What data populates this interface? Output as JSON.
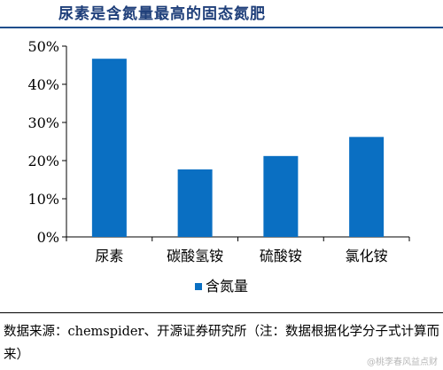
{
  "header": {
    "title": "尿素是含氮量最高的固态氮肥"
  },
  "chart_data": {
    "type": "bar",
    "title": "尿素是含氮量最高的固态氮肥",
    "categories": [
      "尿素",
      "碳酸氢铵",
      "硫酸铵",
      "氯化铵"
    ],
    "series": [
      {
        "name": "含氮量",
        "values": [
          46.7,
          17.7,
          21.2,
          26.2
        ]
      }
    ],
    "ylim": [
      0,
      50
    ],
    "yticks": [
      "0%",
      "10%",
      "20%",
      "30%",
      "40%",
      "50%"
    ],
    "xlabel": "",
    "ylabel": "",
    "grid": false,
    "legend": "bottom-center",
    "bar_color": "#0a6fc2"
  },
  "footer": {
    "source": "数据来源：chemspider、开源证券研究所（注：数据根据化学分子式计算而来）",
    "watermark": "@桃李春风益点财"
  }
}
